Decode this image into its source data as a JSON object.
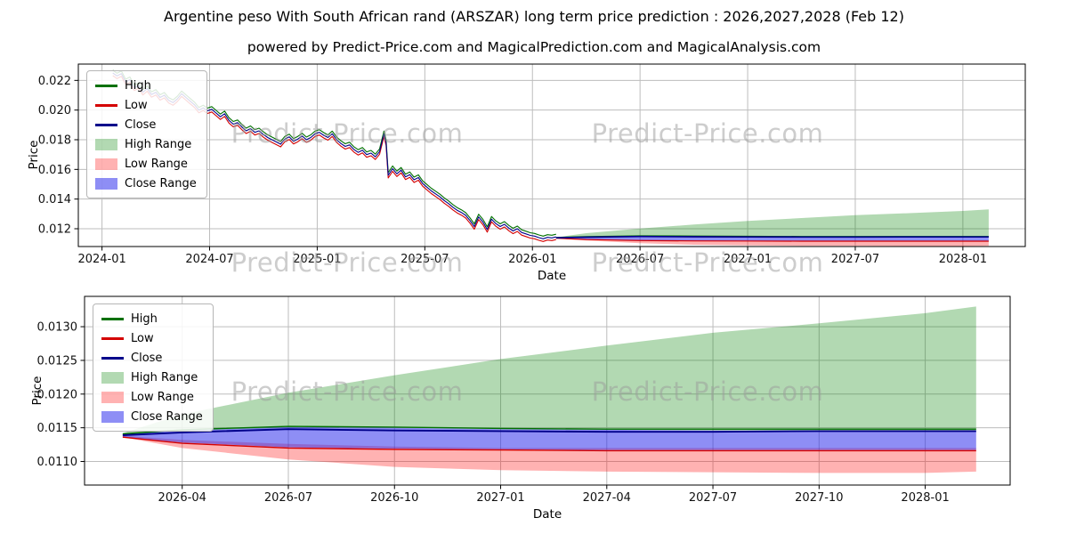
{
  "title": "Argentine peso With South African rand (ARSZAR) long term price prediction : 2026,2027,2028 (Feb 12)",
  "subtitle": "powered by Predict-Price.com and MagicalPrediction.com and MagicalAnalysis.com",
  "watermark": "Predict-Price.com",
  "colors": {
    "high_line": "#007000",
    "low_line": "#d40000",
    "close_line": "#00008b",
    "high_band": "rgba(0,128,0,0.30)",
    "low_band": "rgba(255,0,0,0.30)",
    "close_band": "rgba(30,30,235,0.50)",
    "grid": "#bdbdbd",
    "frame": "#000000",
    "watermark_color": "#9c9c9c"
  },
  "legend": [
    {
      "label": "High",
      "swatch": "line",
      "color": "#007000"
    },
    {
      "label": "Low",
      "swatch": "line",
      "color": "#d40000"
    },
    {
      "label": "Close",
      "swatch": "line",
      "color": "#00008b"
    },
    {
      "label": "High Range",
      "swatch": "patch",
      "color": "rgba(0,128,0,0.30)"
    },
    {
      "label": "Low Range",
      "swatch": "patch",
      "color": "rgba(255,0,0,0.30)"
    },
    {
      "label": "Close Range",
      "swatch": "patch",
      "color": "rgba(30,30,235,0.50)"
    }
  ],
  "chart_data": [
    {
      "id": "overview",
      "type": "line",
      "xlabel": "Date",
      "ylabel": "Price",
      "grid": true,
      "legend_position": "upper left",
      "xlim": [
        2023.89,
        2028.29
      ],
      "ylim": [
        0.0108,
        0.0231
      ],
      "xticks": [
        {
          "v": 2024.0,
          "label": "2024-01"
        },
        {
          "v": 2024.5,
          "label": "2024-07"
        },
        {
          "v": 2025.0,
          "label": "2025-01"
        },
        {
          "v": 2025.5,
          "label": "2025-07"
        },
        {
          "v": 2026.0,
          "label": "2026-01"
        },
        {
          "v": 2026.5,
          "label": "2026-07"
        },
        {
          "v": 2027.0,
          "label": "2027-01"
        },
        {
          "v": 2027.5,
          "label": "2027-07"
        },
        {
          "v": 2028.0,
          "label": "2028-01"
        }
      ],
      "yticks": [
        {
          "v": 0.012,
          "label": "0.012"
        },
        {
          "v": 0.014,
          "label": "0.014"
        },
        {
          "v": 0.016,
          "label": "0.016"
        },
        {
          "v": 0.018,
          "label": "0.018"
        },
        {
          "v": 0.02,
          "label": "0.020"
        },
        {
          "v": 0.022,
          "label": "0.022"
        }
      ],
      "historical": {
        "hl_spread": 0.00018,
        "points": [
          [
            2024.05,
            0.0225
          ],
          [
            2024.07,
            0.0223
          ],
          [
            2024.09,
            0.02245
          ],
          [
            2024.11,
            0.0219
          ],
          [
            2024.13,
            0.02205
          ],
          [
            2024.15,
            0.0215
          ],
          [
            2024.17,
            0.02165
          ],
          [
            2024.19,
            0.0212
          ],
          [
            2024.21,
            0.02145
          ],
          [
            2024.23,
            0.02105
          ],
          [
            2024.25,
            0.0212
          ],
          [
            2024.27,
            0.02085
          ],
          [
            2024.29,
            0.021
          ],
          [
            2024.31,
            0.02065
          ],
          [
            2024.33,
            0.0205
          ],
          [
            2024.35,
            0.02075
          ],
          [
            2024.37,
            0.0211
          ],
          [
            2024.39,
            0.02085
          ],
          [
            2024.41,
            0.0206
          ],
          [
            2024.43,
            0.02035
          ],
          [
            2024.45,
            0.02
          ],
          [
            2024.47,
            0.02015
          ],
          [
            2024.49,
            0.01995
          ],
          [
            2024.51,
            0.02005
          ],
          [
            2024.53,
            0.0198
          ],
          [
            2024.55,
            0.01955
          ],
          [
            2024.57,
            0.01975
          ],
          [
            2024.59,
            0.0193
          ],
          [
            2024.61,
            0.01905
          ],
          [
            2024.63,
            0.01915
          ],
          [
            2024.65,
            0.01885
          ],
          [
            2024.67,
            0.0186
          ],
          [
            2024.69,
            0.01875
          ],
          [
            2024.71,
            0.0185
          ],
          [
            2024.73,
            0.0186
          ],
          [
            2024.75,
            0.01835
          ],
          [
            2024.77,
            0.01815
          ],
          [
            2024.79,
            0.018
          ],
          [
            2024.81,
            0.01785
          ],
          [
            2024.83,
            0.0177
          ],
          [
            2024.85,
            0.01805
          ],
          [
            2024.87,
            0.0182
          ],
          [
            2024.89,
            0.0179
          ],
          [
            2024.91,
            0.01805
          ],
          [
            2024.93,
            0.01825
          ],
          [
            2024.95,
            0.018
          ],
          [
            2024.97,
            0.01815
          ],
          [
            2024.99,
            0.0184
          ],
          [
            2025.01,
            0.0185
          ],
          [
            2025.03,
            0.0183
          ],
          [
            2025.05,
            0.01815
          ],
          [
            2025.07,
            0.0184
          ],
          [
            2025.09,
            0.018
          ],
          [
            2025.11,
            0.01775
          ],
          [
            2025.13,
            0.01755
          ],
          [
            2025.15,
            0.01765
          ],
          [
            2025.17,
            0.01735
          ],
          [
            2025.19,
            0.01715
          ],
          [
            2025.21,
            0.0173
          ],
          [
            2025.23,
            0.017
          ],
          [
            2025.25,
            0.0171
          ],
          [
            2025.27,
            0.01685
          ],
          [
            2025.29,
            0.0172
          ],
          [
            2025.31,
            0.0184
          ],
          [
            2025.32,
            0.0178
          ],
          [
            2025.33,
            0.0156
          ],
          [
            2025.35,
            0.01605
          ],
          [
            2025.37,
            0.0157
          ],
          [
            2025.39,
            0.01595
          ],
          [
            2025.41,
            0.0155
          ],
          [
            2025.43,
            0.01565
          ],
          [
            2025.45,
            0.0153
          ],
          [
            2025.47,
            0.01545
          ],
          [
            2025.49,
            0.01505
          ],
          [
            2025.51,
            0.0148
          ],
          [
            2025.53,
            0.01455
          ],
          [
            2025.55,
            0.01435
          ],
          [
            2025.57,
            0.01415
          ],
          [
            2025.59,
            0.0139
          ],
          [
            2025.61,
            0.0137
          ],
          [
            2025.63,
            0.01345
          ],
          [
            2025.65,
            0.01325
          ],
          [
            2025.67,
            0.0131
          ],
          [
            2025.69,
            0.0129
          ],
          [
            2025.71,
            0.01255
          ],
          [
            2025.73,
            0.01215
          ],
          [
            2025.75,
            0.0128
          ],
          [
            2025.77,
            0.01245
          ],
          [
            2025.79,
            0.01195
          ],
          [
            2025.81,
            0.01265
          ],
          [
            2025.83,
            0.01235
          ],
          [
            2025.85,
            0.01215
          ],
          [
            2025.87,
            0.0123
          ],
          [
            2025.89,
            0.01205
          ],
          [
            2025.91,
            0.01185
          ],
          [
            2025.93,
            0.012
          ],
          [
            2025.95,
            0.01175
          ],
          [
            2025.97,
            0.01165
          ],
          [
            2025.99,
            0.01155
          ],
          [
            2026.01,
            0.0115
          ],
          [
            2026.03,
            0.0114
          ],
          [
            2026.05,
            0.01132
          ],
          [
            2026.07,
            0.01142
          ],
          [
            2026.09,
            0.01138
          ],
          [
            2026.11,
            0.01145
          ]
        ]
      },
      "prediction": {
        "x": [
          2026.11,
          2026.25,
          2026.5,
          2026.75,
          2027.0,
          2027.25,
          2027.5,
          2027.75,
          2028.0,
          2028.12
        ],
        "high": [
          0.01141,
          0.01147,
          0.01152,
          0.01151,
          0.01149,
          0.01148,
          0.01148,
          0.01148,
          0.01148,
          0.01148
        ],
        "low": [
          0.01136,
          0.01127,
          0.0112,
          0.01118,
          0.01117,
          0.01116,
          0.01116,
          0.01116,
          0.01116,
          0.01116
        ],
        "close": [
          0.01139,
          0.01143,
          0.01148,
          0.01146,
          0.01145,
          0.01144,
          0.01144,
          0.01145,
          0.01145,
          0.01145
        ],
        "high_range_top": [
          0.01142,
          0.0117,
          0.01202,
          0.01228,
          0.01252,
          0.01272,
          0.01291,
          0.01305,
          0.0132,
          0.0133
        ],
        "high_range_bottom": [
          0.0114,
          0.01146,
          0.0115,
          0.0115,
          0.01148,
          0.01147,
          0.01146,
          0.01146,
          0.01146,
          0.01146
        ],
        "low_range_top": [
          0.01138,
          0.01132,
          0.01126,
          0.01122,
          0.0112,
          0.0112,
          0.0112,
          0.0112,
          0.0112,
          0.0112
        ],
        "low_range_bottom": [
          0.01136,
          0.0112,
          0.01103,
          0.01092,
          0.01087,
          0.01085,
          0.01084,
          0.01083,
          0.01083,
          0.01085
        ],
        "close_range_top": [
          0.01141,
          0.01146,
          0.01151,
          0.0115,
          0.01148,
          0.01147,
          0.01146,
          0.01146,
          0.01146,
          0.01146
        ],
        "close_range_bottom": [
          0.01136,
          0.01128,
          0.01121,
          0.01119,
          0.01118,
          0.01117,
          0.01117,
          0.01117,
          0.01117,
          0.01117
        ]
      }
    },
    {
      "id": "prediction-detail",
      "type": "line",
      "xlabel": "Date",
      "ylabel": "Price",
      "grid": true,
      "legend_position": "upper left",
      "series_note": "same prediction series as chart_data[0].prediction",
      "xlim": [
        2026.02,
        2028.2
      ],
      "ylim": [
        0.01065,
        0.01345
      ],
      "xticks": [
        {
          "v": 2026.25,
          "label": "2026-04"
        },
        {
          "v": 2026.5,
          "label": "2026-07"
        },
        {
          "v": 2026.75,
          "label": "2026-10"
        },
        {
          "v": 2027.0,
          "label": "2027-01"
        },
        {
          "v": 2027.25,
          "label": "2027-04"
        },
        {
          "v": 2027.5,
          "label": "2027-07"
        },
        {
          "v": 2027.75,
          "label": "2027-10"
        },
        {
          "v": 2028.0,
          "label": "2028-01"
        }
      ],
      "yticks": [
        {
          "v": 0.011,
          "label": "0.0110"
        },
        {
          "v": 0.0115,
          "label": "0.0115"
        },
        {
          "v": 0.012,
          "label": "0.0120"
        },
        {
          "v": 0.0125,
          "label": "0.0125"
        },
        {
          "v": 0.013,
          "label": "0.0130"
        }
      ]
    }
  ]
}
